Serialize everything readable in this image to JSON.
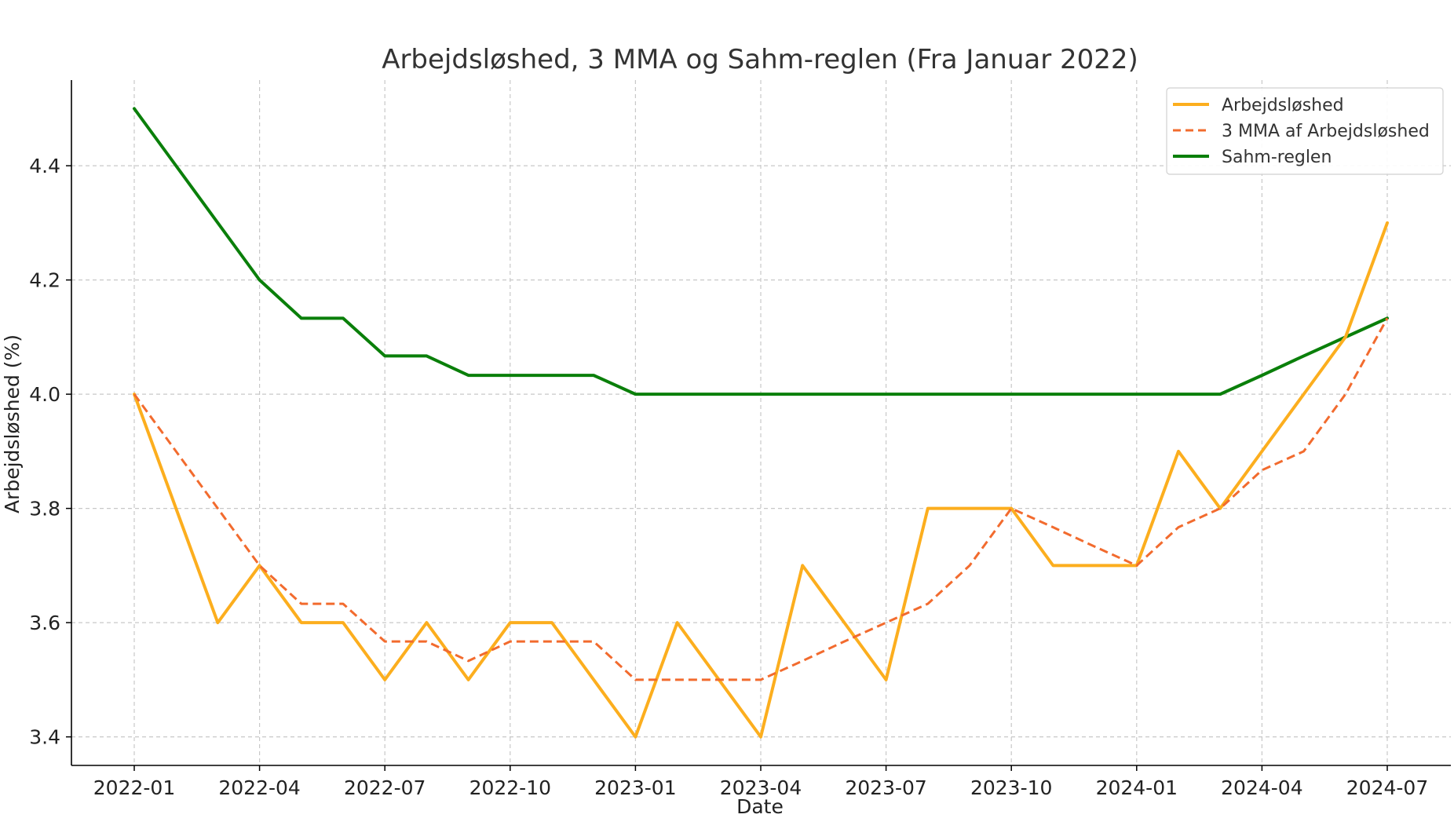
{
  "chart_data": {
    "type": "line",
    "title": "Arbejdsløshed, 3 MMA og Sahm-reglen (Fra Januar 2022)",
    "xlabel": "Date",
    "ylabel": "Arbejdsløshed (%)",
    "x": [
      "2022-01",
      "2022-02",
      "2022-03",
      "2022-04",
      "2022-05",
      "2022-06",
      "2022-07",
      "2022-08",
      "2022-09",
      "2022-10",
      "2022-11",
      "2022-12",
      "2023-01",
      "2023-02",
      "2023-03",
      "2023-04",
      "2023-05",
      "2023-06",
      "2023-07",
      "2023-08",
      "2023-09",
      "2023-10",
      "2023-11",
      "2023-12",
      "2024-01",
      "2024-02",
      "2024-03",
      "2024-04",
      "2024-05",
      "2024-06",
      "2024-07"
    ],
    "x_ticks": [
      "2022-01",
      "2022-04",
      "2022-07",
      "2022-10",
      "2023-01",
      "2023-04",
      "2023-07",
      "2023-10",
      "2024-01",
      "2024-04",
      "2024-07"
    ],
    "y_ticks": [
      3.4,
      3.6,
      3.8,
      4.0,
      4.2,
      4.4
    ],
    "ylim": [
      3.35,
      4.55
    ],
    "grid": true,
    "legend_position": "top-right",
    "series": [
      {
        "name": "Arbejdsløshed",
        "style": "solid",
        "color": "#FCAE1E",
        "values": [
          4.0,
          3.8,
          3.6,
          3.7,
          3.6,
          3.6,
          3.5,
          3.6,
          3.5,
          3.6,
          3.6,
          3.5,
          3.4,
          3.6,
          3.5,
          3.4,
          3.7,
          3.6,
          3.5,
          3.8,
          3.8,
          3.8,
          3.7,
          3.7,
          3.7,
          3.9,
          3.8,
          3.9,
          4.0,
          4.1,
          4.3
        ]
      },
      {
        "name": "3 MMA af Arbejdsløshed",
        "style": "dashed",
        "color": "#F26B2E",
        "values": [
          4.0,
          3.9,
          3.8,
          3.7,
          3.633,
          3.633,
          3.567,
          3.567,
          3.533,
          3.567,
          3.567,
          3.567,
          3.5,
          3.5,
          3.5,
          3.5,
          3.533,
          3.567,
          3.6,
          3.633,
          3.7,
          3.8,
          3.767,
          3.733,
          3.7,
          3.767,
          3.8,
          3.867,
          3.9,
          4.0,
          4.133
        ]
      },
      {
        "name": "Sahm-reglen",
        "style": "solid",
        "color": "#0A7F0A",
        "values": [
          4.5,
          4.4,
          4.3,
          4.2,
          4.133,
          4.133,
          4.067,
          4.067,
          4.033,
          4.033,
          4.033,
          4.033,
          4.0,
          4.0,
          4.0,
          4.0,
          4.0,
          4.0,
          4.0,
          4.0,
          4.0,
          4.0,
          4.0,
          4.0,
          4.0,
          4.0,
          4.0,
          4.033,
          4.067,
          4.1,
          4.133
        ]
      }
    ]
  }
}
